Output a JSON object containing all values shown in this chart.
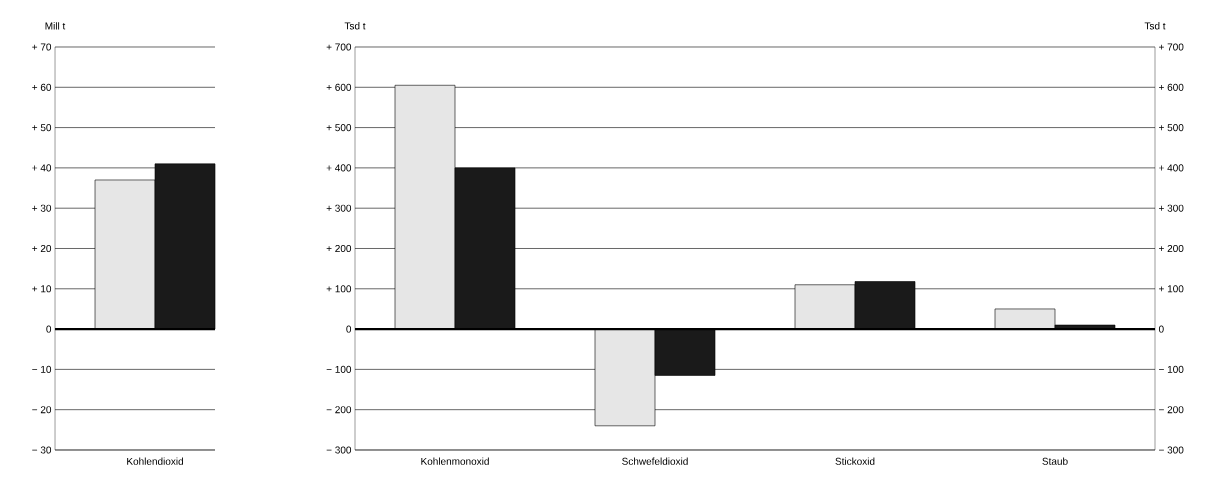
{
  "chart_data": [
    {
      "type": "bar",
      "ylabel": "Mill t",
      "categories": [
        "Kohlendioxid"
      ],
      "series": [
        {
          "color": "#e6e6e6",
          "values": [
            37
          ]
        },
        {
          "color": "#1a1a1a",
          "values": [
            41
          ]
        }
      ],
      "ylim": [
        -30,
        70
      ],
      "yticks": [
        {
          "value": -30,
          "label": "− 30"
        },
        {
          "value": -20,
          "label": "− 20"
        },
        {
          "value": -10,
          "label": "− 10"
        },
        0,
        {
          "value": 10,
          "label": "+ 10"
        },
        {
          "value": 20,
          "label": "+ 20"
        },
        {
          "value": 30,
          "label": "+ 30"
        },
        {
          "value": 40,
          "label": "+ 40"
        },
        {
          "value": 50,
          "label": "+ 50"
        },
        {
          "value": 60,
          "label": "+ 60"
        },
        {
          "value": 70,
          "label": "+ 70"
        }
      ],
      "grid": "y"
    },
    {
      "type": "bar",
      "ylabel": "Tsd t",
      "y2label": "Tsd t",
      "categories": [
        "Kohlenmonoxid",
        "Schwefeldioxid",
        "Stickoxid",
        "Staub"
      ],
      "series": [
        {
          "color": "#e6e6e6",
          "values": [
            605,
            -240,
            110,
            50
          ]
        },
        {
          "color": "#1a1a1a",
          "values": [
            400,
            -115,
            118,
            10
          ]
        }
      ],
      "ylim": [
        -300,
        700
      ],
      "yticks": [
        {
          "value": -300,
          "label": "− 300"
        },
        {
          "value": -200,
          "label": "− 200"
        },
        {
          "value": -100,
          "label": "− 100"
        },
        0,
        {
          "value": 100,
          "label": "+ 100"
        },
        {
          "value": 200,
          "label": "+ 200"
        },
        {
          "value": 300,
          "label": "+ 300"
        },
        {
          "value": 400,
          "label": "+ 400"
        },
        {
          "value": 500,
          "label": "+ 500"
        },
        {
          "value": 600,
          "label": "+ 600"
        },
        {
          "value": 700,
          "label": "+ 700"
        }
      ],
      "y2lim": [
        -300,
        700
      ],
      "y2ticks": [
        {
          "value": -300,
          "label": "− 300"
        },
        {
          "value": -200,
          "label": "− 200"
        },
        {
          "value": -100,
          "label": "− 100"
        },
        0,
        {
          "value": 100,
          "label": "+ 100"
        },
        {
          "value": 200,
          "label": "+ 200"
        },
        {
          "value": 300,
          "label": "+ 300"
        },
        {
          "value": 400,
          "label": "+ 400"
        },
        {
          "value": 500,
          "label": "+ 500"
        },
        {
          "value": 600,
          "label": "+ 600"
        },
        {
          "value": 700,
          "label": "+ 700"
        }
      ],
      "grid": "y"
    }
  ]
}
